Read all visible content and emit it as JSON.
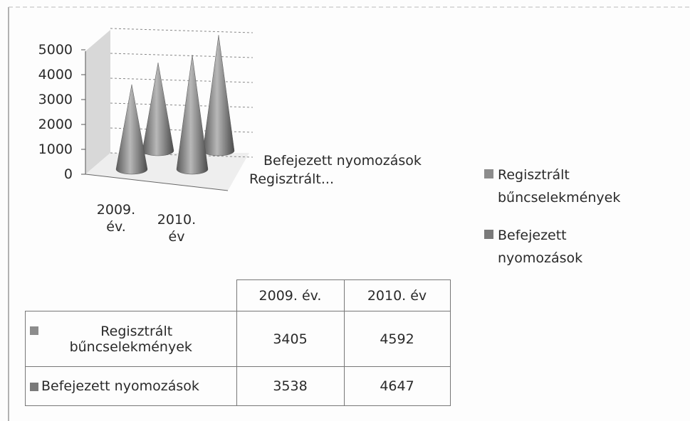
{
  "chart_data": {
    "type": "cone",
    "categories": [
      "2009. év.",
      "2010. év"
    ],
    "series": [
      {
        "name": "Regisztrált bűncselekmények",
        "color": "#8c8c8c",
        "values": [
          3405,
          4592
        ]
      },
      {
        "name": "Befejezett nyomozások",
        "color": "#7a7a7a",
        "values": [
          3538,
          4647
        ]
      }
    ],
    "depth_labels": [
      "Regisztrált...",
      "Befejezett nyomozások"
    ],
    "ylim": [
      0,
      5000
    ],
    "yticks": [
      0,
      1000,
      2000,
      3000,
      4000,
      5000
    ],
    "grid": true,
    "legend": "right",
    "data_table": true
  }
}
